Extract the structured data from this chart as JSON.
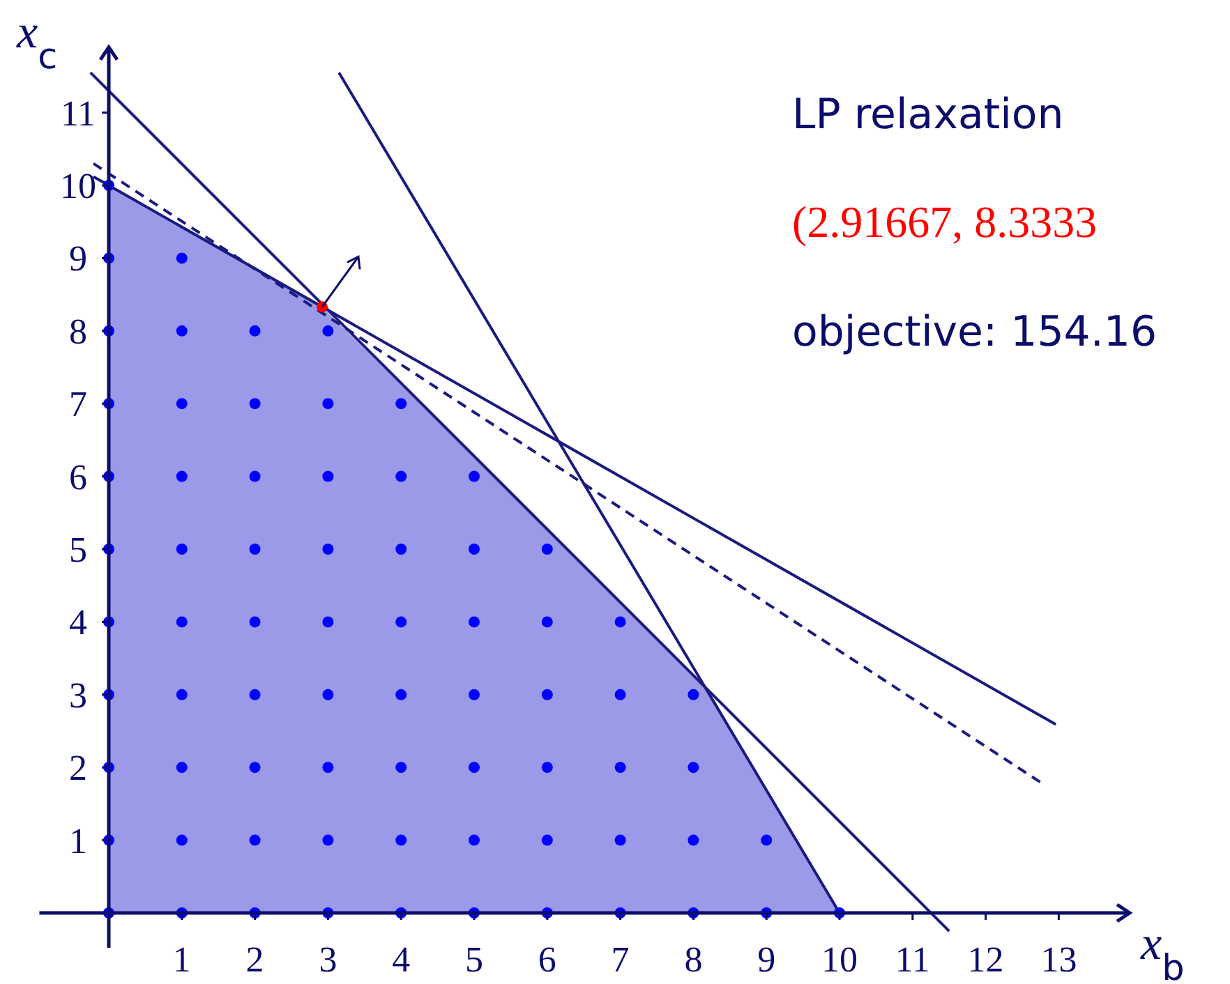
{
  "chart_data": {
    "type": "scatter",
    "xlabel": "x$_{b}$",
    "ylabel": "x$_{c}$",
    "xlim": [
      -0.95,
      13.97
    ],
    "ylim": [
      -0.48,
      11.9
    ],
    "xticks": [
      1,
      2,
      3,
      4,
      5,
      6,
      7,
      8,
      9,
      10,
      11,
      12,
      13
    ],
    "yticks": [
      1,
      2,
      3,
      4,
      5,
      6,
      7,
      8,
      9,
      10,
      11
    ],
    "marker": "circle",
    "series": [
      {
        "type": "area",
        "marker": "none",
        "color": "#9a9ae8",
        "x": [
          0,
          2.92,
          8.12,
          10
        ],
        "values": [
          10,
          8.33,
          3.15,
          0
        ]
      },
      {
        "type": "line",
        "marker": "none",
        "color": "#1a1a80",
        "line_style": "solid",
        "x": [
          -0.21,
          12.96
        ],
        "values": [
          10.12,
          2.59
        ]
      },
      {
        "type": "line",
        "marker": "none",
        "color": "#1a1a80",
        "line_style": "solid",
        "x": [
          -0.25,
          11.5
        ],
        "values": [
          11.55,
          -0.25
        ]
      },
      {
        "type": "line",
        "marker": "none",
        "color": "#1a1a80",
        "line_style": "solid",
        "x": [
          3.15,
          10
        ],
        "values": [
          11.55,
          0
        ]
      },
      {
        "type": "line",
        "marker": "none",
        "color": "#1a1a80",
        "line_style": "dashed",
        "x": [
          -0.21,
          12.82
        ],
        "values": [
          10.3,
          1.75
        ]
      },
      {
        "color": "#0000ff",
        "x": [
          0,
          1,
          2,
          3,
          4,
          5,
          6,
          7,
          8,
          9,
          10,
          0,
          1,
          2,
          3,
          4,
          5,
          6,
          7,
          8,
          9,
          0,
          1,
          2,
          3,
          4,
          5,
          6,
          7,
          8,
          0,
          1,
          2,
          3,
          4,
          5,
          6,
          7,
          8,
          0,
          1,
          2,
          3,
          4,
          5,
          6,
          7,
          0,
          1,
          2,
          3,
          4,
          5,
          6,
          0,
          1,
          2,
          3,
          4,
          5,
          0,
          1,
          2,
          3,
          4,
          0,
          1,
          2,
          3,
          0,
          1,
          0
        ],
        "values": [
          0,
          0,
          0,
          0,
          0,
          0,
          0,
          0,
          0,
          0,
          0,
          1,
          1,
          1,
          1,
          1,
          1,
          1,
          1,
          1,
          1,
          2,
          2,
          2,
          2,
          2,
          2,
          2,
          2,
          2,
          3,
          3,
          3,
          3,
          3,
          3,
          3,
          3,
          3,
          4,
          4,
          4,
          4,
          4,
          4,
          4,
          4,
          5,
          5,
          5,
          5,
          5,
          5,
          5,
          6,
          6,
          6,
          6,
          6,
          6,
          7,
          7,
          7,
          7,
          7,
          8,
          8,
          8,
          8,
          9,
          9,
          10
        ]
      },
      {
        "color": "#ff0000",
        "x": [
          2.92
        ],
        "values": [
          8.33
        ]
      }
    ],
    "annotations": [
      "LP relaxation",
      "(2.91667, 8.3333",
      "objective: 154.16"
    ]
  }
}
